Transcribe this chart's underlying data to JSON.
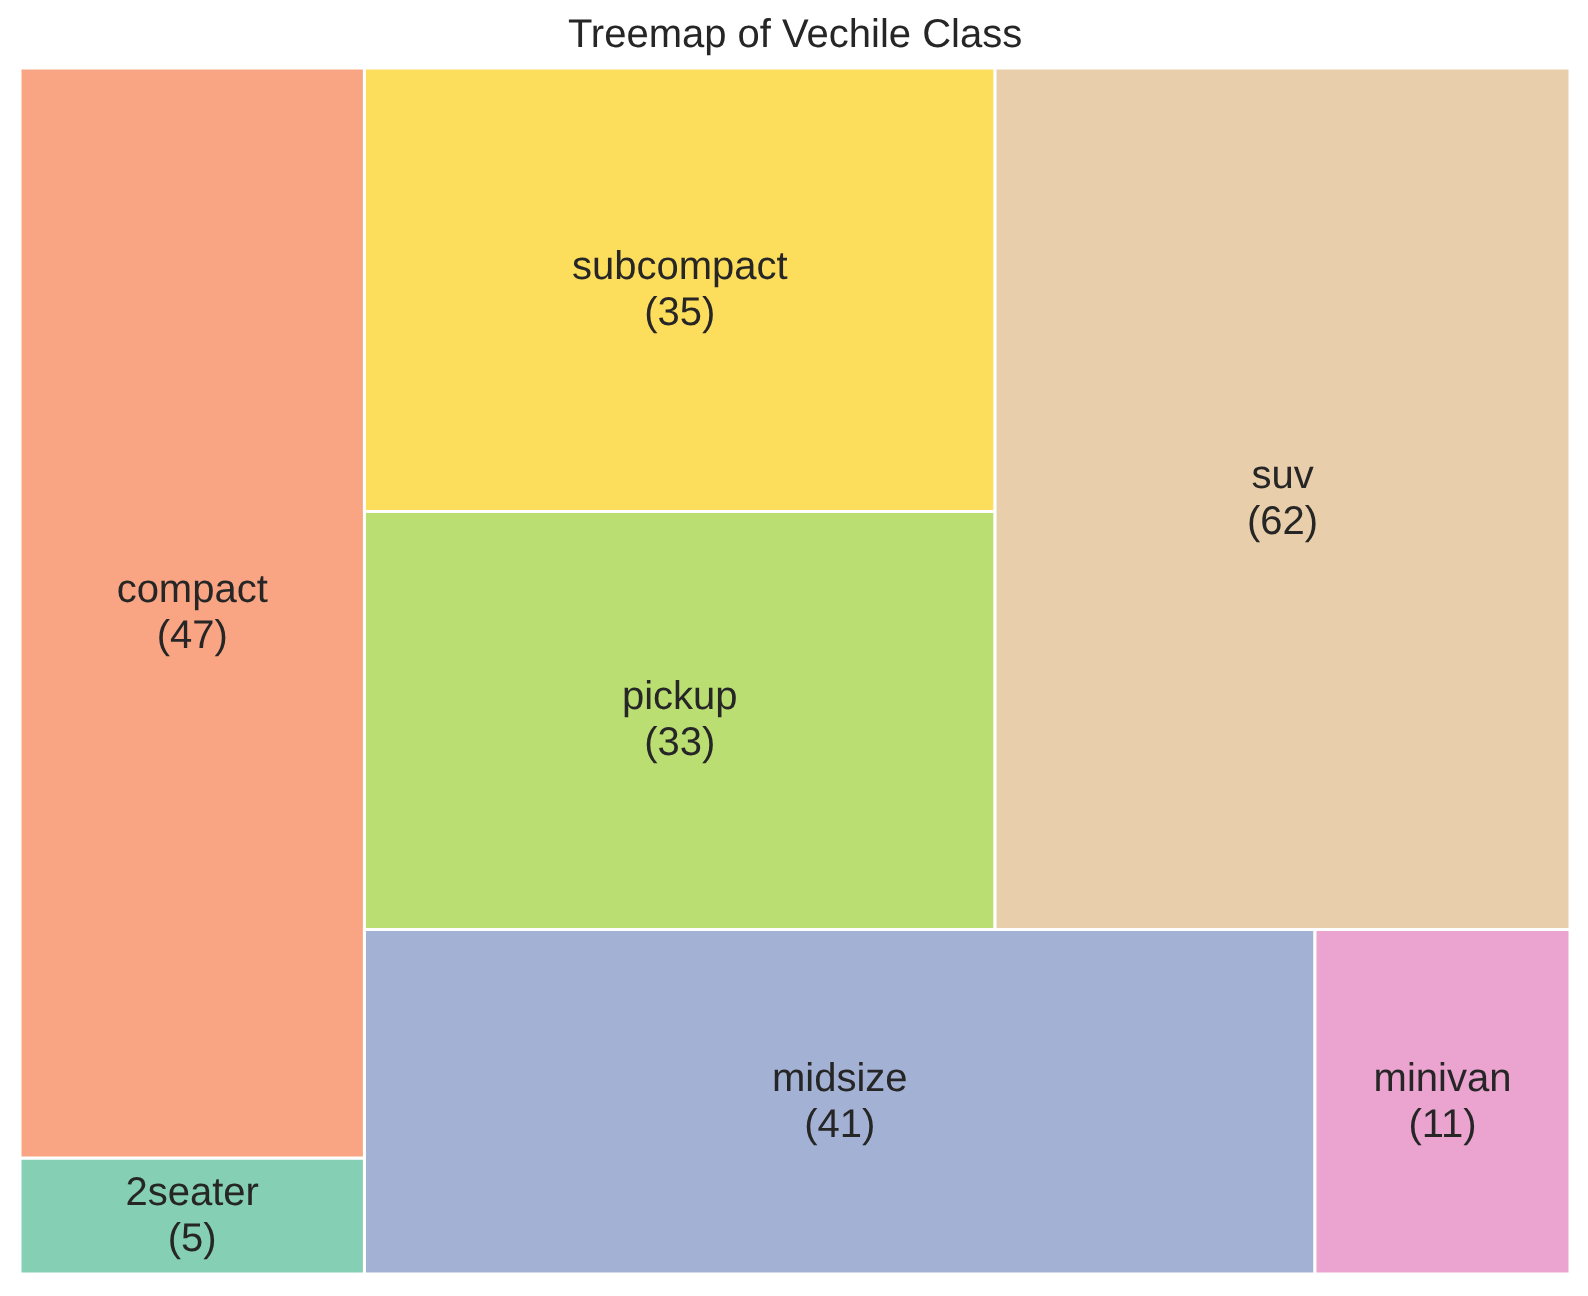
{
  "chart_data": {
    "type": "other",
    "title": "Treemap of Vechile Class",
    "categories": [
      "2seater",
      "compact",
      "midsize",
      "minivan",
      "pickup",
      "subcompact",
      "suv"
    ],
    "values": [
      5,
      47,
      41,
      11,
      33,
      35,
      62
    ],
    "value_labels": [
      "(5)",
      "(47)",
      "(41)",
      "(11)",
      "(33)",
      "(35)",
      "(62)"
    ],
    "colors": [
      "#85cfb5",
      "#f9a583",
      "#a3b2d4",
      "#eaa4cf",
      "#bade72",
      "#fddd5c",
      "#e8ceaa"
    ]
  }
}
